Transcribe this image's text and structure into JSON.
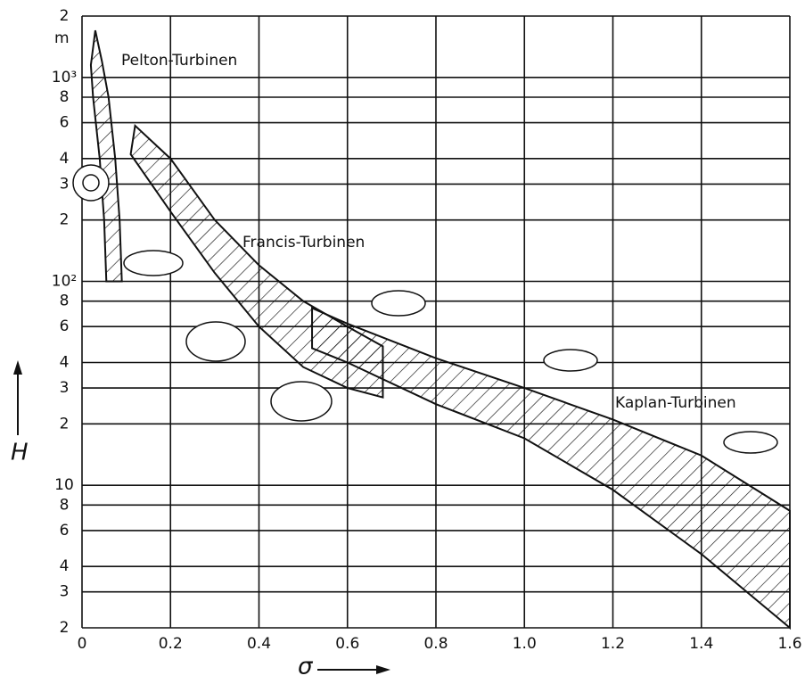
{
  "chart_data": {
    "type": "area",
    "xlabel": "σ",
    "ylabel": "H",
    "y_unit": "m",
    "log_y": true,
    "grid": true,
    "color": "#111111",
    "xlim": [
      0,
      1.6
    ],
    "ylim": [
      2,
      2000
    ],
    "xticks": [
      0,
      0.2,
      0.4,
      0.6,
      0.8,
      {
        "value": 1,
        "label": "1.0"
      },
      1.2,
      1.4,
      1.6
    ],
    "yticks": [
      2,
      3,
      4,
      6,
      8,
      10,
      {
        "value": 20,
        "label": "2"
      },
      {
        "value": 30,
        "label": "3"
      },
      {
        "value": 40,
        "label": "4"
      },
      {
        "value": 60,
        "label": "6"
      },
      {
        "value": 80,
        "label": "8"
      },
      {
        "value": 100,
        "label": "10²"
      },
      {
        "value": 200,
        "label": "2"
      },
      {
        "value": 300,
        "label": "3"
      },
      {
        "value": 400,
        "label": "4"
      },
      {
        "value": 600,
        "label": "6"
      },
      {
        "value": 800,
        "label": "8"
      },
      {
        "value": 1000,
        "label": "10³"
      },
      {
        "value": 2000,
        "label": "2"
      }
    ],
    "series": [
      {
        "name": "Pelton-Turbinen",
        "x": [
          0.055,
          0.05,
          0.04,
          0.025,
          0.02,
          0.03,
          0.045,
          0.06,
          0.075,
          0.085,
          0.09
        ],
        "y": [
          100,
          200,
          400,
          800,
          1150,
          1700,
          1200,
          800,
          400,
          200,
          100
        ]
      },
      {
        "name": "Francis-Turbinen",
        "x": [
          0.12,
          0.2,
          0.3,
          0.4,
          0.5,
          0.6,
          0.68,
          0.68,
          0.6,
          0.5,
          0.4,
          0.3,
          0.2,
          0.11
        ],
        "y": [
          580,
          400,
          200,
          120,
          80,
          60,
          48,
          27,
          30,
          38,
          60,
          110,
          220,
          420
        ]
      },
      {
        "name": "Kaplan-Turbinen",
        "x": [
          0.52,
          0.6,
          0.8,
          1,
          1.2,
          1.4,
          1.6,
          1.6,
          1.4,
          1.2,
          1,
          0.8,
          0.6,
          0.52
        ],
        "y": [
          74,
          62,
          42,
          30,
          21,
          14,
          7.5,
          2,
          4.6,
          9.5,
          17,
          25,
          40,
          47
        ]
      }
    ]
  }
}
